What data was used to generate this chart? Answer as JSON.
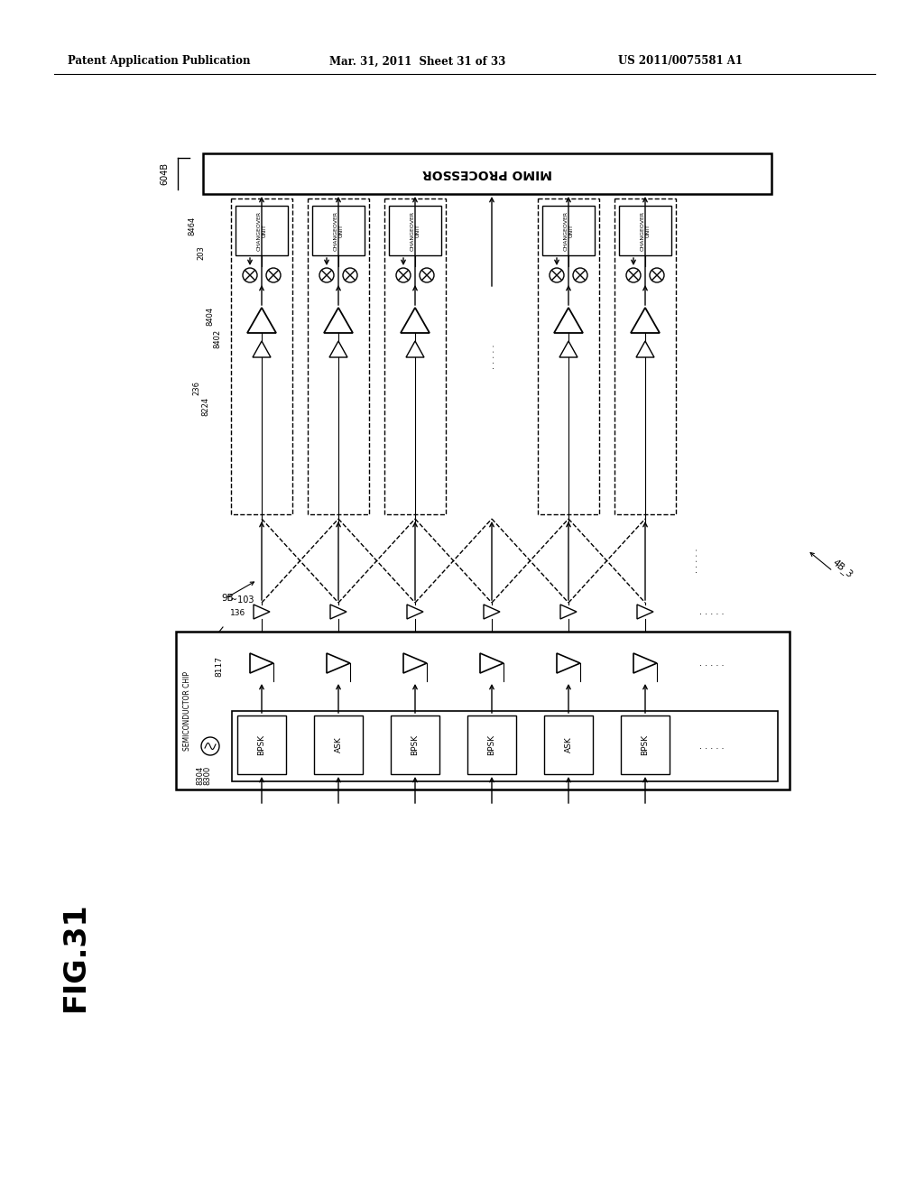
{
  "background": "#ffffff",
  "line_color": "#000000",
  "header_left": "Patent Application Publication",
  "header_mid": "Mar. 31, 2011  Sheet 31 of 33",
  "header_right": "US 2011/0075581 A1",
  "fig_label": "FIG.31",
  "mod_labels": [
    "BPSK",
    "ASK",
    "BPSK",
    "BPSK",
    "ASK",
    "BPSK"
  ],
  "mimo_label": "MIMO PROCESSOR",
  "changeover_label": "CHANGEOVER\nUNIT",
  "chip_label": "SEMICONDUCTOR CHIP",
  "label_8300": "8300",
  "label_8304": "8304",
  "label_8117": "8117",
  "label_136": "136",
  "label_103": "~103",
  "label_9B": "9B",
  "label_4B3": "4B_3",
  "label_604B": "604B",
  "label_8464": "8464",
  "label_203": "203",
  "label_8404": "8404",
  "label_8402": "8402",
  "label_236": "236",
  "label_8224": "8224"
}
